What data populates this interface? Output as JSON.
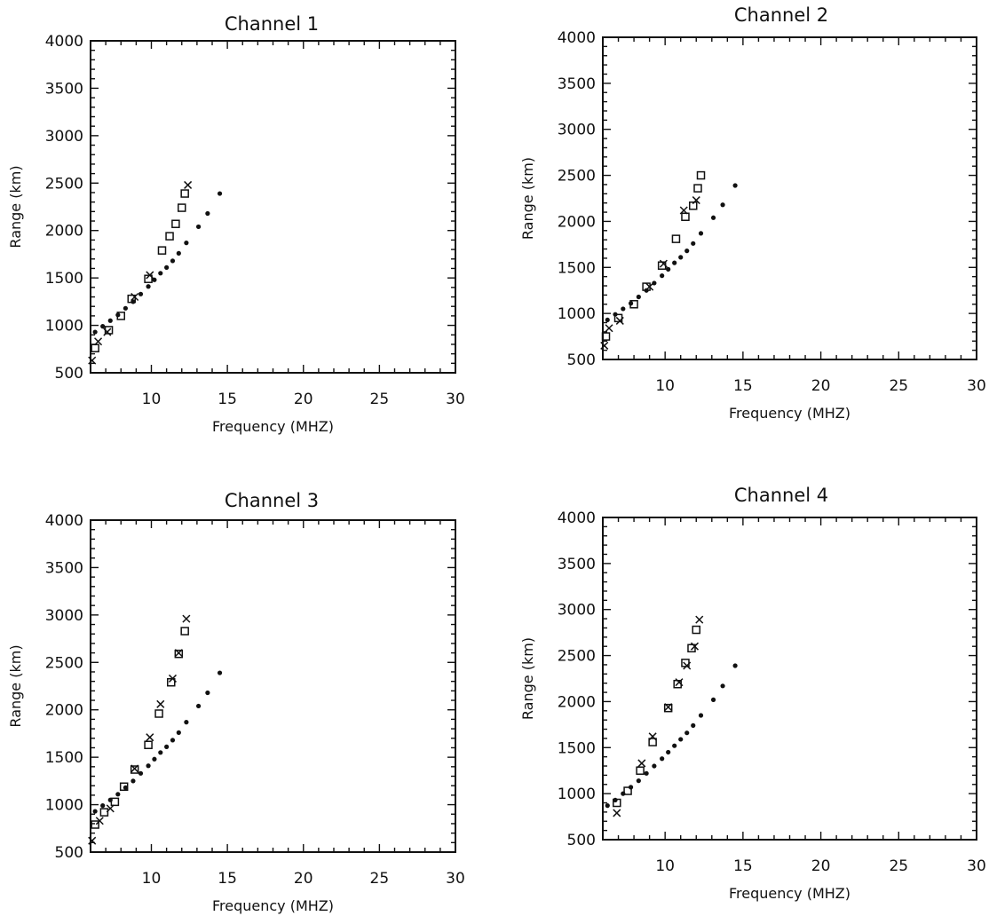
{
  "chart_data": [
    {
      "type": "scatter",
      "title": "Channel 1",
      "xlabel": "Frequency (MHZ)",
      "ylabel": "Range (km)",
      "xlim": [
        6,
        30
      ],
      "ylim": [
        500,
        4000
      ],
      "xticks": [
        "10",
        "15",
        "20",
        "25",
        "30"
      ],
      "yticks": [
        "500",
        "1000",
        "1500",
        "2000",
        "2500",
        "3000",
        "3500",
        "4000"
      ],
      "series": [
        {
          "marker": "dot",
          "x": [
            6.3,
            6.8,
            7.3,
            7.8,
            8.3,
            8.8,
            9.3,
            9.8,
            10.2,
            10.6,
            11.0,
            11.4,
            11.8,
            12.3,
            13.1,
            13.7,
            14.5
          ],
          "y": [
            930,
            990,
            1050,
            1110,
            1180,
            1250,
            1330,
            1410,
            1480,
            1550,
            1610,
            1680,
            1760,
            1870,
            2040,
            2180,
            2390
          ]
        },
        {
          "marker": "square",
          "x": [
            6.3,
            7.2,
            8.0,
            8.7,
            9.8,
            10.7,
            11.2,
            11.6,
            12.0,
            12.2
          ],
          "y": [
            760,
            950,
            1100,
            1280,
            1490,
            1790,
            1940,
            2070,
            2240,
            2390
          ]
        },
        {
          "marker": "x",
          "x": [
            6.1,
            6.5,
            7.1,
            8.9,
            9.9,
            12.4
          ],
          "y": [
            630,
            830,
            930,
            1300,
            1530,
            2480
          ]
        }
      ]
    },
    {
      "type": "scatter",
      "title": "Channel 2",
      "xlabel": "Frequency (MHZ)",
      "ylabel": "Range (km)",
      "xlim": [
        6,
        30
      ],
      "ylim": [
        500,
        4000
      ],
      "xticks": [
        "10",
        "15",
        "20",
        "25",
        "30"
      ],
      "yticks": [
        "500",
        "1000",
        "1500",
        "2000",
        "2500",
        "3000",
        "3500",
        "4000"
      ],
      "series": [
        {
          "marker": "dot",
          "x": [
            6.3,
            6.8,
            7.3,
            7.8,
            8.3,
            8.8,
            9.3,
            9.8,
            10.2,
            10.6,
            11.0,
            11.4,
            11.8,
            12.3,
            13.1,
            13.7,
            14.5
          ],
          "y": [
            930,
            990,
            1050,
            1110,
            1180,
            1250,
            1330,
            1410,
            1480,
            1550,
            1610,
            1680,
            1760,
            1870,
            2040,
            2180,
            2390
          ]
        },
        {
          "marker": "square",
          "x": [
            6.2,
            7.0,
            8.0,
            8.8,
            9.8,
            10.7,
            11.3,
            11.8,
            12.1,
            12.3
          ],
          "y": [
            750,
            950,
            1100,
            1290,
            1520,
            1810,
            2050,
            2170,
            2360,
            2500
          ]
        },
        {
          "marker": "x",
          "x": [
            6.1,
            6.4,
            7.1,
            9.0,
            9.9,
            11.2,
            12.0
          ],
          "y": [
            650,
            840,
            920,
            1290,
            1540,
            2120,
            2230
          ]
        }
      ]
    },
    {
      "type": "scatter",
      "title": "Channel 3",
      "xlabel": "Frequency (MHZ)",
      "ylabel": "Range (km)",
      "xlim": [
        6,
        30
      ],
      "ylim": [
        500,
        4000
      ],
      "xticks": [
        "10",
        "15",
        "20",
        "25",
        "30"
      ],
      "yticks": [
        "500",
        "1000",
        "1500",
        "2000",
        "2500",
        "3000",
        "3500",
        "4000"
      ],
      "series": [
        {
          "marker": "dot",
          "x": [
            6.3,
            6.8,
            7.3,
            7.8,
            8.3,
            8.8,
            9.3,
            9.8,
            10.2,
            10.6,
            11.0,
            11.4,
            11.8,
            12.3,
            13.1,
            13.7,
            14.5
          ],
          "y": [
            930,
            990,
            1050,
            1110,
            1180,
            1250,
            1330,
            1410,
            1480,
            1550,
            1610,
            1680,
            1760,
            1870,
            2040,
            2180,
            2390
          ]
        },
        {
          "marker": "square",
          "x": [
            6.3,
            6.9,
            7.6,
            8.2,
            8.9,
            9.8,
            10.5,
            11.3,
            11.8,
            12.2
          ],
          "y": [
            790,
            920,
            1030,
            1190,
            1370,
            1630,
            1960,
            2290,
            2590,
            2830
          ]
        },
        {
          "marker": "x",
          "x": [
            6.1,
            6.6,
            7.3,
            8.9,
            9.9,
            10.6,
            11.4,
            11.8,
            12.3
          ],
          "y": [
            620,
            830,
            960,
            1380,
            1710,
            2060,
            2330,
            2600,
            2960
          ]
        }
      ]
    },
    {
      "type": "scatter",
      "title": "Channel 4",
      "xlabel": "Frequency (MHZ)",
      "ylabel": "Range (km)",
      "xlim": [
        6,
        30
      ],
      "ylim": [
        500,
        4000
      ],
      "xticks": [
        "10",
        "15",
        "20",
        "25",
        "30"
      ],
      "yticks": [
        "500",
        "1000",
        "1500",
        "2000",
        "2500",
        "3000",
        "3500",
        "4000"
      ],
      "series": [
        {
          "marker": "dot",
          "x": [
            6.3,
            6.8,
            7.3,
            7.8,
            8.3,
            8.8,
            9.3,
            9.8,
            10.2,
            10.6,
            11.0,
            11.4,
            11.8,
            12.3,
            13.1,
            13.7,
            14.5
          ],
          "y": [
            870,
            930,
            1000,
            1070,
            1140,
            1220,
            1300,
            1380,
            1450,
            1520,
            1590,
            1660,
            1740,
            1850,
            2020,
            2170,
            2390
          ]
        },
        {
          "marker": "square",
          "x": [
            6.9,
            7.6,
            8.4,
            9.2,
            10.2,
            10.8,
            11.3,
            11.7,
            12.0
          ],
          "y": [
            900,
            1030,
            1250,
            1560,
            1930,
            2190,
            2420,
            2580,
            2780
          ]
        },
        {
          "marker": "x",
          "x": [
            6.9,
            8.5,
            9.2,
            10.2,
            10.9,
            11.4,
            11.9,
            12.2
          ],
          "y": [
            790,
            1330,
            1620,
            1940,
            2210,
            2390,
            2600,
            2890
          ]
        }
      ]
    }
  ]
}
